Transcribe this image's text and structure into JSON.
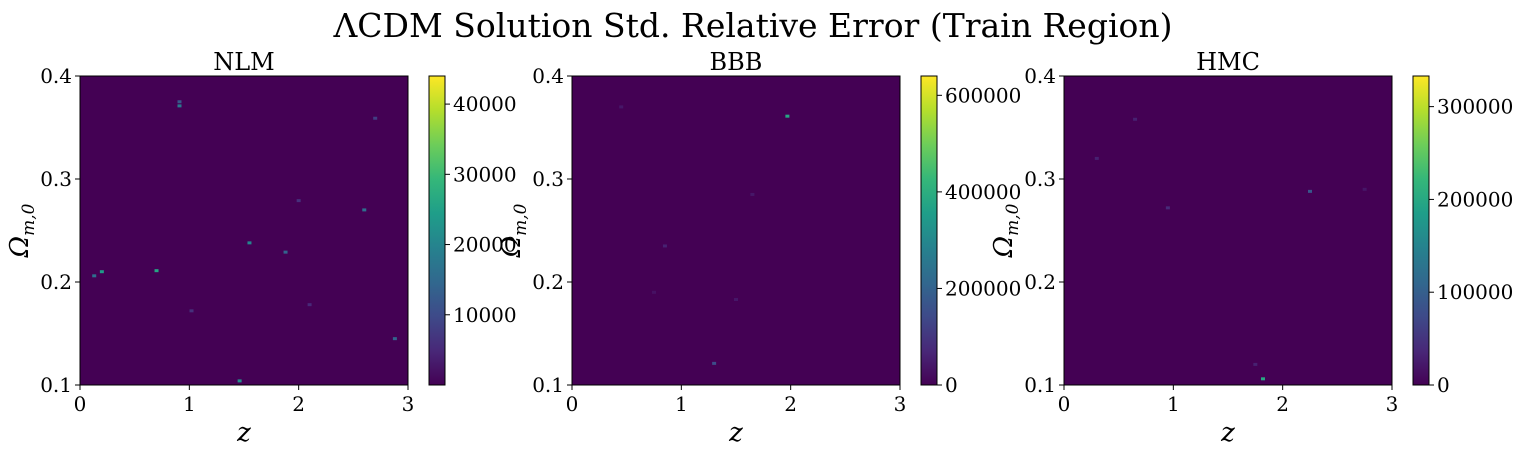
{
  "suptitle": "ΛCDM Solution Std. Relative Error (Train Region)",
  "chart_data": [
    {
      "type": "heatmap",
      "title": "NLM",
      "xlabel": "z",
      "ylabel": "Ω",
      "ylabel_sub": "m,0",
      "xlim": [
        0,
        3
      ],
      "ylim": [
        0.1,
        0.4
      ],
      "xticks": [
        "0",
        "1",
        "2",
        "3"
      ],
      "yticks": [
        "0.1",
        "0.2",
        "0.3",
        "0.4"
      ],
      "colorbar": {
        "min": 0,
        "max": 44000,
        "ticks": [
          10000,
          20000,
          30000,
          40000
        ]
      },
      "colormap": "viridis",
      "background_value": 0,
      "hotspots": [
        {
          "z": 0.91,
          "om": 0.371,
          "value": 18000
        },
        {
          "z": 0.91,
          "om": 0.375,
          "value": 12000
        },
        {
          "z": 0.2,
          "om": 0.21,
          "value": 24000
        },
        {
          "z": 0.13,
          "om": 0.206,
          "value": 16000
        },
        {
          "z": 0.7,
          "om": 0.211,
          "value": 26000
        },
        {
          "z": 1.55,
          "om": 0.238,
          "value": 20000
        },
        {
          "z": 1.88,
          "om": 0.229,
          "value": 14000
        },
        {
          "z": 2.6,
          "om": 0.27,
          "value": 16000
        },
        {
          "z": 1.46,
          "om": 0.104,
          "value": 22000
        },
        {
          "z": 2.88,
          "om": 0.145,
          "value": 14000
        },
        {
          "z": 2.7,
          "om": 0.359,
          "value": 8000
        },
        {
          "z": 1.02,
          "om": 0.172,
          "value": 6000
        },
        {
          "z": 2.0,
          "om": 0.279,
          "value": 6000
        },
        {
          "z": 2.1,
          "om": 0.178,
          "value": 5000
        }
      ]
    },
    {
      "type": "heatmap",
      "title": "BBB",
      "xlabel": "z",
      "ylabel": "Ω",
      "ylabel_sub": "m,0",
      "xlim": [
        0,
        3
      ],
      "ylim": [
        0.1,
        0.4
      ],
      "xticks": [
        "0",
        "1",
        "2",
        "3"
      ],
      "yticks": [
        "0.1",
        "0.2",
        "0.3",
        "0.4"
      ],
      "colorbar": {
        "min": 0,
        "max": 640000,
        "ticks": [
          0,
          200000,
          400000,
          600000
        ]
      },
      "colormap": "viridis",
      "background_value": 0,
      "hotspots": [
        {
          "z": 1.97,
          "om": 0.361,
          "value": 380000
        },
        {
          "z": 1.3,
          "om": 0.121,
          "value": 150000
        },
        {
          "z": 0.85,
          "om": 0.235,
          "value": 60000
        },
        {
          "z": 0.45,
          "om": 0.37,
          "value": 40000
        },
        {
          "z": 1.5,
          "om": 0.183,
          "value": 40000
        },
        {
          "z": 1.65,
          "om": 0.285,
          "value": 40000
        },
        {
          "z": 0.75,
          "om": 0.19,
          "value": 30000
        }
      ]
    },
    {
      "type": "heatmap",
      "title": "HMC",
      "xlabel": "z",
      "ylabel": "Ω",
      "ylabel_sub": "m,0",
      "xlim": [
        0,
        3
      ],
      "ylim": [
        0.1,
        0.4
      ],
      "xticks": [
        "0",
        "1",
        "2",
        "3"
      ],
      "yticks": [
        "0.1",
        "0.2",
        "0.3",
        "0.4"
      ],
      "colorbar": {
        "min": 0,
        "max": 333000,
        "ticks": [
          0,
          100000,
          200000,
          300000
        ]
      },
      "colormap": "viridis",
      "background_value": 0,
      "hotspots": [
        {
          "z": 1.82,
          "om": 0.106,
          "value": 200000
        },
        {
          "z": 2.25,
          "om": 0.288,
          "value": 90000
        },
        {
          "z": 0.95,
          "om": 0.272,
          "value": 40000
        },
        {
          "z": 0.65,
          "om": 0.358,
          "value": 30000
        },
        {
          "z": 0.3,
          "om": 0.32,
          "value": 30000
        },
        {
          "z": 1.75,
          "om": 0.12,
          "value": 30000
        },
        {
          "z": 2.75,
          "om": 0.29,
          "value": 20000
        }
      ]
    }
  ]
}
